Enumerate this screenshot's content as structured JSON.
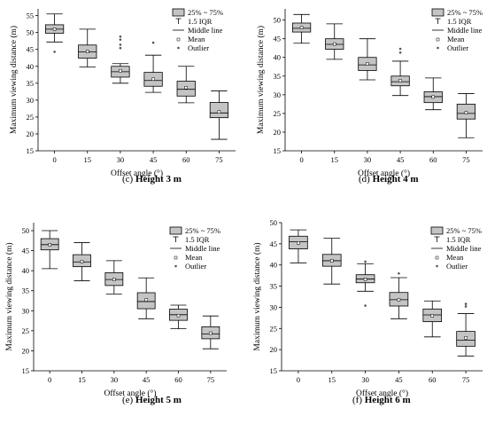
{
  "legend": {
    "box": "25% ~ 75%",
    "whisker": "1.5 IQR",
    "median": "Middle line",
    "mean": "Mean",
    "outlier": "Outlier"
  },
  "chart_data": [
    {
      "type": "box",
      "panel": "c",
      "caption_prefix": "(c)",
      "caption_bold": "Height 3 m",
      "xlabel": "Offset angle (°)",
      "ylabel": "Maximum viewing distance (m)",
      "categories": [
        "0",
        "15",
        "30",
        "45",
        "60",
        "75"
      ],
      "ylim": [
        15,
        57
      ],
      "yticks": [
        15,
        20,
        25,
        30,
        35,
        40,
        45,
        50,
        55
      ],
      "boxes": [
        {
          "min": 47.2,
          "q1": 49.8,
          "median": 51.0,
          "q3": 52.3,
          "max": 55.5,
          "mean": 51.0,
          "outliers": [
            44.3
          ]
        },
        {
          "min": 39.8,
          "q1": 42.4,
          "median": 44.3,
          "q3": 46.3,
          "max": 51.0,
          "mean": 44.4,
          "outliers": []
        },
        {
          "min": 35.0,
          "q1": 36.8,
          "median": 38.4,
          "q3": 40.0,
          "max": 40.8,
          "mean": 38.7,
          "outliers": [
            45.4,
            46.4,
            47.9,
            48.8
          ]
        },
        {
          "min": 32.3,
          "q1": 34.1,
          "median": 35.8,
          "q3": 38.2,
          "max": 43.3,
          "mean": 36.2,
          "outliers": [
            47.0
          ]
        },
        {
          "min": 29.2,
          "q1": 31.2,
          "median": 33.2,
          "q3": 35.6,
          "max": 40.0,
          "mean": 33.7,
          "outliers": []
        },
        {
          "min": 18.4,
          "q1": 24.8,
          "median": 26.2,
          "q3": 29.3,
          "max": 32.7,
          "mean": 26.5,
          "outliers": []
        }
      ]
    },
    {
      "type": "box",
      "panel": "d",
      "caption_prefix": "(d)",
      "caption_bold": "Height 4 m",
      "xlabel": "Offset angle (°)",
      "ylabel": "Maximum viewing distance (m)",
      "categories": [
        "0",
        "15",
        "30",
        "45",
        "60",
        "75"
      ],
      "ylim": [
        15,
        53
      ],
      "yticks": [
        15,
        20,
        25,
        30,
        35,
        40,
        45,
        50
      ],
      "boxes": [
        {
          "min": 43.8,
          "q1": 46.8,
          "median": 47.8,
          "q3": 49.2,
          "max": 51.5,
          "mean": 48.0,
          "outliers": []
        },
        {
          "min": 39.5,
          "q1": 42.2,
          "median": 43.5,
          "q3": 45.0,
          "max": 49.0,
          "mean": 43.6,
          "outliers": []
        },
        {
          "min": 34.0,
          "q1": 36.5,
          "median": 38.0,
          "q3": 40.0,
          "max": 45.0,
          "mean": 38.3,
          "outliers": []
        },
        {
          "min": 29.8,
          "q1": 32.4,
          "median": 33.5,
          "q3": 35.0,
          "max": 39.0,
          "mean": 33.8,
          "outliers": [
            41.3,
            42.3
          ]
        },
        {
          "min": 26.0,
          "q1": 27.9,
          "median": 29.5,
          "q3": 30.8,
          "max": 34.5,
          "mean": 29.4,
          "outliers": []
        },
        {
          "min": 18.5,
          "q1": 23.5,
          "median": 25.0,
          "q3": 27.5,
          "max": 30.3,
          "mean": 25.2,
          "outliers": []
        }
      ]
    },
    {
      "type": "box",
      "panel": "e",
      "caption_prefix": "(e)",
      "caption_bold": "Height 5 m",
      "xlabel": "Offset angle (°)",
      "ylabel": "Maximum viewing distance (m)",
      "categories": [
        "0",
        "15",
        "30",
        "45",
        "60",
        "75"
      ],
      "ylim": [
        15,
        52
      ],
      "yticks": [
        15,
        20,
        25,
        30,
        35,
        40,
        45,
        50
      ],
      "boxes": [
        {
          "min": 40.5,
          "q1": 45.2,
          "median": 46.5,
          "q3": 48.0,
          "max": 50.0,
          "mean": 46.5,
          "outliers": []
        },
        {
          "min": 37.5,
          "q1": 41.0,
          "median": 42.2,
          "q3": 44.0,
          "max": 47.0,
          "mean": 42.3,
          "outliers": []
        },
        {
          "min": 34.2,
          "q1": 36.3,
          "median": 37.8,
          "q3": 39.5,
          "max": 42.5,
          "mean": 37.8,
          "outliers": []
        },
        {
          "min": 28.0,
          "q1": 30.5,
          "median": 32.3,
          "q3": 34.5,
          "max": 38.2,
          "mean": 32.7,
          "outliers": []
        },
        {
          "min": 25.5,
          "q1": 27.6,
          "median": 29.0,
          "q3": 30.4,
          "max": 31.4,
          "mean": 28.8,
          "outliers": []
        },
        {
          "min": 20.5,
          "q1": 23.0,
          "median": 24.2,
          "q3": 26.0,
          "max": 28.7,
          "mean": 24.4,
          "outliers": []
        }
      ]
    },
    {
      "type": "box",
      "panel": "f",
      "caption_prefix": "(f)",
      "caption_bold": "Height 6 m",
      "xlabel": "Offset angle (°)",
      "ylabel": "Maximum viewing distance (m)",
      "categories": [
        "0",
        "15",
        "30",
        "45",
        "60",
        "75"
      ],
      "ylim": [
        15,
        50
      ],
      "yticks": [
        15,
        20,
        25,
        30,
        35,
        40,
        45,
        50
      ],
      "boxes": [
        {
          "min": 40.5,
          "q1": 43.8,
          "median": 45.5,
          "q3": 46.8,
          "max": 48.3,
          "mean": 45.2,
          "outliers": []
        },
        {
          "min": 35.5,
          "q1": 39.7,
          "median": 41.0,
          "q3": 42.5,
          "max": 46.3,
          "mean": 41.0,
          "outliers": []
        },
        {
          "min": 33.8,
          "q1": 35.8,
          "median": 36.7,
          "q3": 37.7,
          "max": 40.3,
          "mean": 36.6,
          "outliers": [
            30.4,
            40.8
          ]
        },
        {
          "min": 27.3,
          "q1": 30.3,
          "median": 31.8,
          "q3": 33.5,
          "max": 37.0,
          "mean": 31.8,
          "outliers": [
            38.0
          ]
        },
        {
          "min": 23.0,
          "q1": 26.6,
          "median": 28.2,
          "q3": 29.6,
          "max": 31.5,
          "mean": 28.0,
          "outliers": []
        },
        {
          "min": 18.5,
          "q1": 20.8,
          "median": 22.2,
          "q3": 24.3,
          "max": 28.5,
          "mean": 22.8,
          "outliers": [
            30.2,
            30.8
          ]
        }
      ]
    }
  ]
}
